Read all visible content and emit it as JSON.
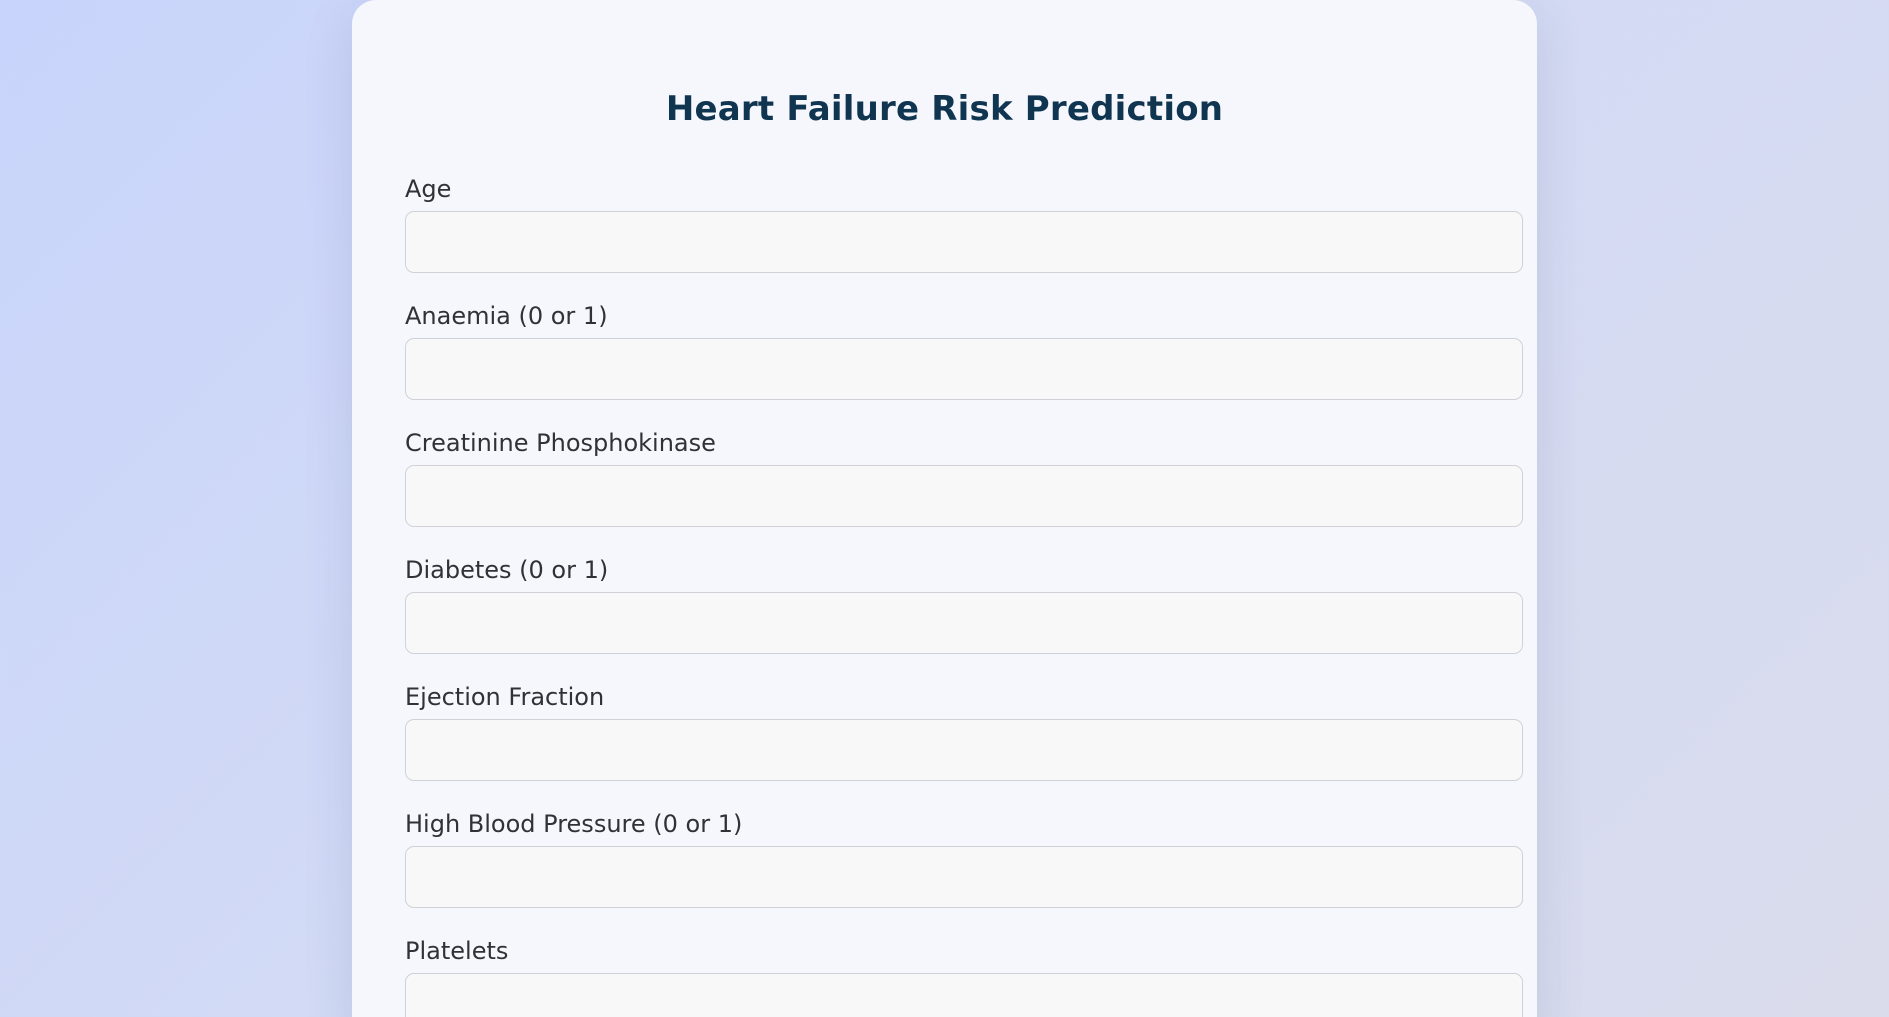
{
  "page": {
    "title": "Heart Failure Risk Prediction"
  },
  "form": {
    "fields": [
      {
        "label": "Age",
        "value": "",
        "placeholder": ""
      },
      {
        "label": "Anaemia (0 or 1)",
        "value": "",
        "placeholder": ""
      },
      {
        "label": "Creatinine Phosphokinase",
        "value": "",
        "placeholder": ""
      },
      {
        "label": "Diabetes (0 or 1)",
        "value": "",
        "placeholder": ""
      },
      {
        "label": "Ejection Fraction",
        "value": "",
        "placeholder": ""
      },
      {
        "label": "High Blood Pressure (0 or 1)",
        "value": "",
        "placeholder": ""
      },
      {
        "label": "Platelets",
        "value": "",
        "placeholder": ""
      }
    ]
  },
  "colors": {
    "title": "#0f3550",
    "label": "#2f3236",
    "card_background": "#f6f7fd",
    "input_background": "#f8f8f9",
    "input_border": "#cfd1d6"
  }
}
